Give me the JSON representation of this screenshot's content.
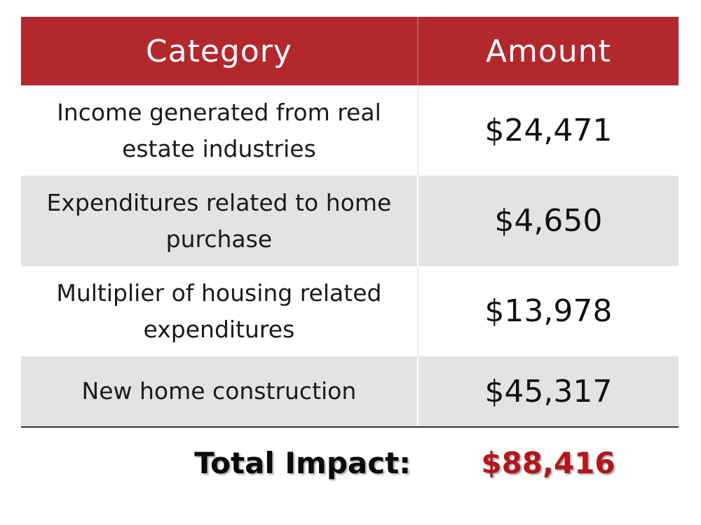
{
  "table": {
    "headers": {
      "category": "Category",
      "amount": "Amount"
    },
    "rows": [
      {
        "category": "Income generated from real estate industries",
        "amount": "$24,471"
      },
      {
        "category": "Expenditures related to home purchase",
        "amount": "$4,650"
      },
      {
        "category": "Multiplier of housing related expenditures",
        "amount": "$13,978"
      },
      {
        "category": "New home construction",
        "amount": "$45,317"
      }
    ],
    "total": {
      "label": "Total Impact:",
      "value": "$88,416"
    }
  },
  "colors": {
    "header_background": "#b3282d",
    "shaded_row": "#e3e3e3",
    "total_value": "#b3161c"
  }
}
